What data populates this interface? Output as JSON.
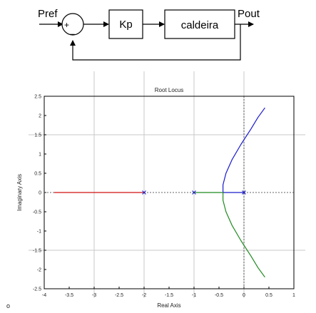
{
  "block_diagram": {
    "input_label": "Pref",
    "output_label": "Pout",
    "sum_plus": "+",
    "sum_minus": "_",
    "controller_label": "Kp",
    "plant_label": "caldeira"
  },
  "corner_mark": "o",
  "chart_data": {
    "type": "line",
    "title": "Root Locus",
    "xlabel": "Real Axis",
    "ylabel": "Imaginary Axis",
    "xlim": [
      -4,
      1
    ],
    "ylim": [
      -2.5,
      2.5
    ],
    "xticks": [
      -4,
      -3.5,
      -3,
      -2.5,
      -2,
      -1.5,
      -1,
      -0.5,
      0,
      0.5,
      1
    ],
    "yticks": [
      -2.5,
      -2,
      -1.5,
      -1,
      -0.5,
      0,
      0.5,
      1,
      1.5,
      2,
      2.5
    ],
    "grid": true,
    "asymptote_center_x": 0,
    "poles": [
      [
        -2,
        0
      ],
      [
        -1,
        0
      ],
      [
        0,
        0
      ]
    ],
    "colors": {
      "branch_a": "#d01010",
      "branch_b": "#1a1acc",
      "branch_c": "#1f8a1f"
    },
    "series": [
      {
        "color_key": "branch_a",
        "x": [
          -3.8,
          -2.0
        ],
        "y": [
          0,
          0
        ]
      },
      {
        "color_key": "branch_b",
        "x": [
          0,
          -0.42,
          -0.42,
          -0.36,
          -0.24,
          -0.06,
          0.14,
          0.28,
          0.42
        ],
        "y": [
          0,
          0,
          0.2,
          0.5,
          0.85,
          1.25,
          1.65,
          1.95,
          2.2
        ]
      },
      {
        "color_key": "branch_c",
        "x": [
          -1,
          -0.42,
          -0.42,
          -0.36,
          -0.24,
          -0.06,
          0.14,
          0.28,
          0.42
        ],
        "y": [
          0,
          0,
          -0.2,
          -0.5,
          -0.85,
          -1.25,
          -1.65,
          -1.95,
          -2.2
        ]
      }
    ]
  }
}
